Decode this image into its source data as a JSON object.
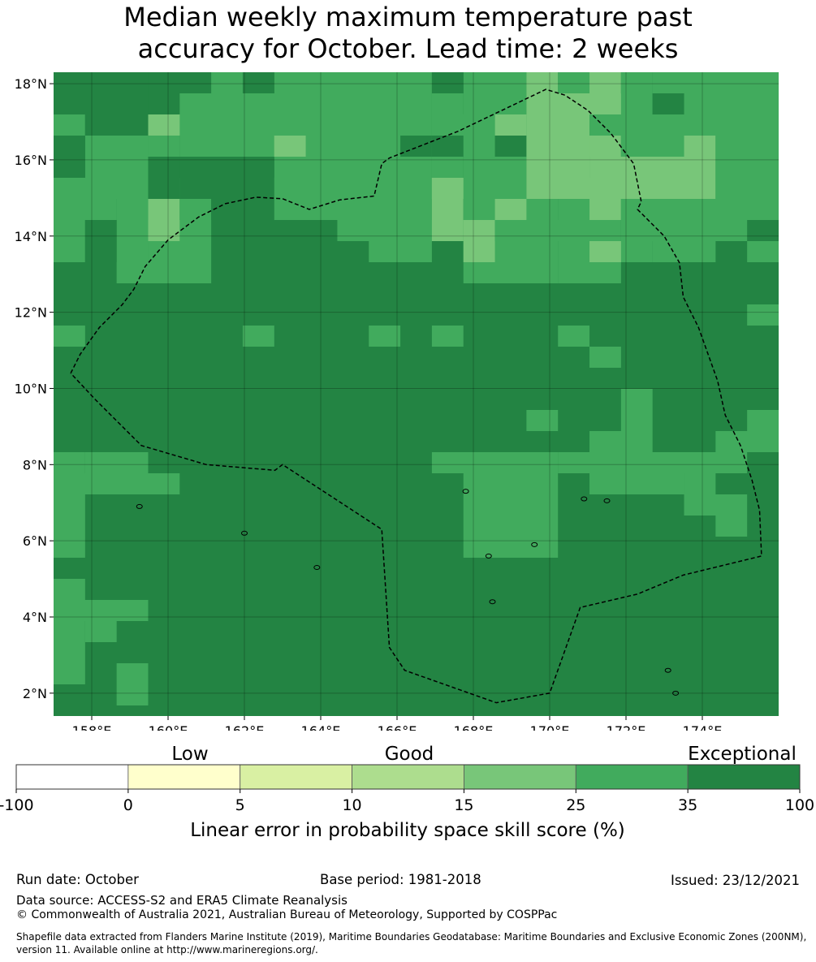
{
  "title": {
    "line1": "Median weekly maximum temperature past",
    "line2": "accuracy for October. Lead time: 2 weeks"
  },
  "map": {
    "lon_ticks": [
      "158°E",
      "160°E",
      "162°E",
      "164°E",
      "166°E",
      "168°E",
      "170°E",
      "172°E",
      "174°E"
    ],
    "lat_ticks": [
      "18°N",
      "16°N",
      "14°N",
      "12°N",
      "10°N",
      "8°N",
      "6°N",
      "4°N",
      "2°N"
    ],
    "lon_range": [
      157.0,
      176.0
    ],
    "lat_range": [
      1.4,
      18.3
    ],
    "grid_cell_deg": 0.83,
    "gridlines": true,
    "boundary_style": "dashed",
    "colors": {
      "c1": "#ffffcc",
      "c2": "#d9f0a3",
      "c3": "#addd8e",
      "c4": "#78c679",
      "c5": "#41ab5d",
      "c6": "#238443"
    }
  },
  "colorbar": {
    "category_labels": [
      "Low",
      "Good",
      "Exceptional"
    ],
    "tick_labels": [
      "-100",
      "0",
      "5",
      "10",
      "15",
      "25",
      "35",
      "100"
    ],
    "colors": [
      "#ffffff",
      "#ffffcc",
      "#d9f0a3",
      "#addd8e",
      "#78c679",
      "#41ab5d",
      "#238443"
    ],
    "label": "Linear error in probability space skill score (%)"
  },
  "footer": {
    "run_date": "Run date: October",
    "base_period": "Base period: 1981-2018",
    "issued": "Issued: 23/12/2021",
    "data_source": "Data source: ACCESS-S2 and ERA5 Climate Reanalysis",
    "copyright": "© Commonwealth of Australia 2021, Australian Bureau of Meteorology, Supported by COSPPac",
    "shapefile_note": "Shapefile data extracted from Flanders Marine Institute (2019), Maritime Boundaries Geodatabase: Maritime Boundaries and Exclusive Economic Zones (200NM), version 11. Available online at http://www.marineregions.org/."
  }
}
